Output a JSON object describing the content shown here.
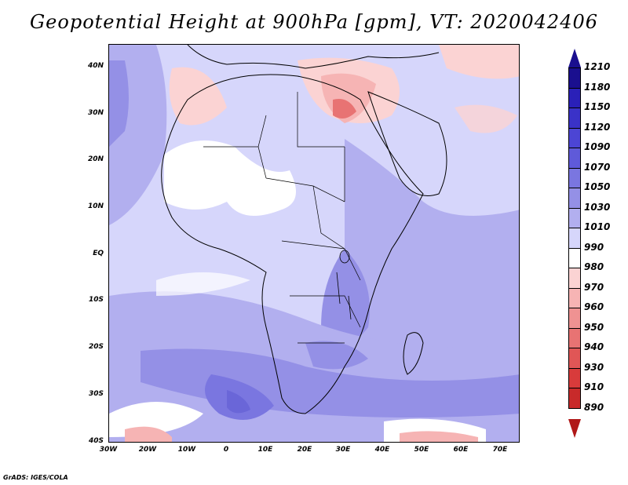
{
  "title": "Geopotential Height at 900hPa [gpm], VT: 2020042406",
  "footer": "GrADS: IGES/COLA",
  "map": {
    "region": "Africa",
    "lat_labels": [
      "40N",
      "30N",
      "20N",
      "10N",
      "EQ",
      "10S",
      "20S",
      "30S",
      "40S"
    ],
    "lon_labels": [
      "30W",
      "20W",
      "10W",
      "0",
      "10E",
      "20E",
      "30E",
      "40E",
      "50E",
      "60E",
      "70E"
    ],
    "lat_range": [
      -40,
      44
    ],
    "lon_range": [
      -30,
      75
    ]
  },
  "colorbar": {
    "levels": [
      "1210",
      "1180",
      "1150",
      "1120",
      "1090",
      "1070",
      "1050",
      "1030",
      "1010",
      "990",
      "980",
      "970",
      "960",
      "950",
      "940",
      "930",
      "910",
      "890"
    ],
    "colors": [
      "#1a0f8f",
      "#2a20b8",
      "#3a32c8",
      "#4c45d4",
      "#5f5ad9",
      "#7a76e0",
      "#9490e6",
      "#b2afef",
      "#d6d6fb",
      "#ffffff",
      "#fbd3d3",
      "#f6b4b4",
      "#ef9292",
      "#e87373",
      "#e05656",
      "#d83b3b",
      "#c82a2a",
      "#b01818"
    ]
  }
}
